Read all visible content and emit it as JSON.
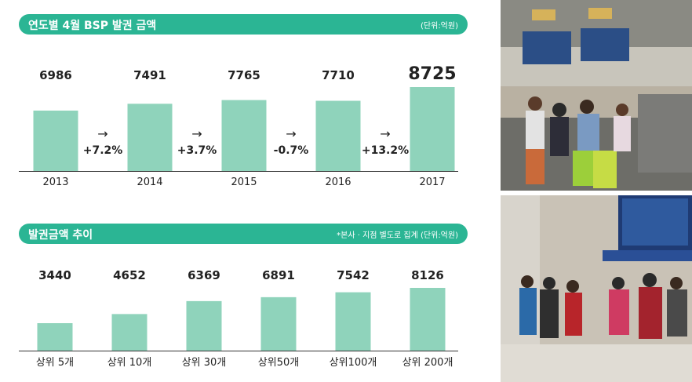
{
  "chart_data": [
    {
      "type": "bar",
      "title": "연도별 4월 BSP 발권 금액",
      "unit": "(단위:억원)",
      "categories": [
        "2013",
        "2014",
        "2015",
        "2016",
        "2017"
      ],
      "values": [
        6986,
        7491,
        7765,
        7710,
        8725
      ],
      "growth": [
        "+7.2%",
        "+3.7%",
        "-0.7%",
        "+13.2%"
      ],
      "arrow": "→"
    },
    {
      "type": "bar",
      "title": "발권금액 추이",
      "unit": "*본사 · 지점 별도로 집계 (단위:억원)",
      "categories": [
        "상위 5개",
        "상위 10개",
        "상위 30개",
        "상위50개",
        "상위100개",
        "상위 200개"
      ],
      "values": [
        3440,
        4652,
        6369,
        6891,
        7542,
        8126
      ]
    }
  ],
  "colors": {
    "header": "#2bb594",
    "bar": "#8fd3bb",
    "text": "#222222"
  }
}
